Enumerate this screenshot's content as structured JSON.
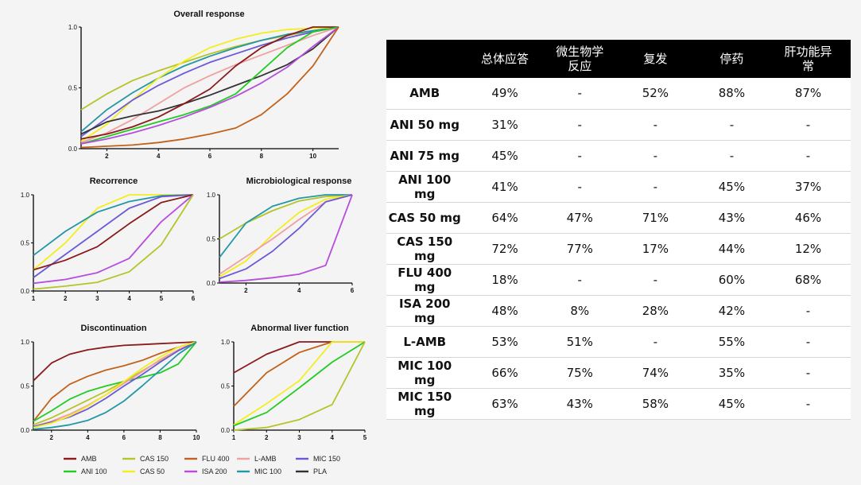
{
  "colors": {
    "AMB": "#8b1a1a",
    "ANI 100": "#22cc22",
    "CAS 150": "#b5c42a",
    "CAS 50": "#f2ee20",
    "FLU 400": "#c2621a",
    "ISA 200": "#b64ddd",
    "L-AMB": "#f0a0a0",
    "MIC 100": "#2497a5",
    "MIC 150": "#6a5ad8",
    "PLA": "#333333"
  },
  "legend": {
    "items": [
      "AMB",
      "CAS 150",
      "FLU 400",
      "L-AMB",
      "MIC 150",
      "ANI 100",
      "CAS 50",
      "ISA 200",
      "MIC 100",
      "PLA"
    ]
  },
  "chart_data": [
    {
      "type": "line",
      "title": "Overall response",
      "xlim": [
        1,
        11
      ],
      "ylim": [
        0,
        1
      ],
      "xticks": [
        2,
        4,
        6,
        8,
        10
      ],
      "yticks": [
        "0.0",
        "0.5",
        "1.0"
      ],
      "series": [
        {
          "name": "CAS 150",
          "x": [
            1,
            2,
            3,
            4,
            5,
            6,
            7,
            8,
            9,
            10,
            11
          ],
          "y": [
            0.32,
            0.45,
            0.56,
            0.64,
            0.71,
            0.78,
            0.84,
            0.89,
            0.93,
            0.97,
            1.0
          ]
        },
        {
          "name": "MIC 100",
          "x": [
            1,
            2,
            3,
            4,
            5,
            6,
            7,
            8,
            9,
            10,
            11
          ],
          "y": [
            0.14,
            0.32,
            0.46,
            0.58,
            0.68,
            0.76,
            0.83,
            0.89,
            0.94,
            0.97,
            1.0
          ]
        },
        {
          "name": "CAS 50",
          "x": [
            1,
            2,
            3,
            4,
            5,
            6,
            7,
            8,
            9,
            10,
            11
          ],
          "y": [
            0.06,
            0.2,
            0.4,
            0.58,
            0.72,
            0.83,
            0.9,
            0.95,
            0.98,
            0.99,
            1.0
          ]
        },
        {
          "name": "MIC 150",
          "x": [
            1,
            2,
            3,
            4,
            5,
            6,
            7,
            8,
            9,
            10,
            11
          ],
          "y": [
            0.1,
            0.25,
            0.4,
            0.52,
            0.62,
            0.71,
            0.78,
            0.85,
            0.91,
            0.96,
            1.0
          ]
        },
        {
          "name": "L-AMB",
          "x": [
            1,
            2,
            3,
            4,
            5,
            6,
            7,
            8,
            9,
            10,
            11
          ],
          "y": [
            0.05,
            0.13,
            0.24,
            0.37,
            0.5,
            0.6,
            0.69,
            0.77,
            0.85,
            0.93,
            1.0
          ]
        },
        {
          "name": "PLA",
          "x": [
            1,
            2,
            3,
            4,
            5,
            6,
            7,
            8,
            9,
            10,
            11
          ],
          "y": [
            0.12,
            0.22,
            0.27,
            0.31,
            0.37,
            0.44,
            0.52,
            0.6,
            0.69,
            0.82,
            1.0
          ]
        },
        {
          "name": "AMB",
          "x": [
            1,
            2,
            3,
            4,
            5,
            6,
            7,
            8,
            9,
            10,
            11
          ],
          "y": [
            0.08,
            0.12,
            0.18,
            0.26,
            0.37,
            0.49,
            0.68,
            0.83,
            0.93,
            1.0,
            1.0
          ]
        },
        {
          "name": "ANI 100",
          "x": [
            1,
            2,
            3,
            4,
            5,
            6,
            7,
            8,
            9,
            10,
            11
          ],
          "y": [
            0.04,
            0.1,
            0.16,
            0.22,
            0.28,
            0.35,
            0.45,
            0.64,
            0.83,
            0.96,
            1.0
          ]
        },
        {
          "name": "ISA 200",
          "x": [
            1,
            2,
            3,
            4,
            5,
            6,
            7,
            8,
            9,
            10,
            11
          ],
          "y": [
            0.04,
            0.08,
            0.13,
            0.19,
            0.26,
            0.34,
            0.43,
            0.54,
            0.67,
            0.84,
            1.0
          ]
        },
        {
          "name": "FLU 400",
          "x": [
            1,
            2,
            3,
            4,
            5,
            6,
            7,
            8,
            9,
            10,
            11
          ],
          "y": [
            0.01,
            0.02,
            0.03,
            0.05,
            0.08,
            0.12,
            0.17,
            0.28,
            0.45,
            0.68,
            1.0
          ]
        }
      ]
    },
    {
      "type": "line",
      "title": "Recorrence",
      "xlim": [
        1,
        6
      ],
      "ylim": [
        0,
        1
      ],
      "xticks": [
        1,
        2,
        3,
        4,
        5,
        6
      ],
      "yticks": [
        "0.0",
        "0.5",
        "1.0"
      ],
      "series": [
        {
          "name": "CAS 50",
          "x": [
            1,
            2,
            3,
            4,
            5,
            6
          ],
          "y": [
            0.22,
            0.5,
            0.86,
            1.0,
            1.0,
            1.0
          ]
        },
        {
          "name": "MIC 100",
          "x": [
            1,
            2,
            3,
            4,
            5,
            6
          ],
          "y": [
            0.37,
            0.62,
            0.82,
            0.93,
            0.99,
            1.0
          ]
        },
        {
          "name": "MIC 150",
          "x": [
            1,
            2,
            3,
            4,
            5,
            6
          ],
          "y": [
            0.14,
            0.38,
            0.62,
            0.86,
            0.98,
            1.0
          ]
        },
        {
          "name": "AMB",
          "x": [
            1,
            2,
            3,
            4,
            5,
            6
          ],
          "y": [
            0.22,
            0.32,
            0.46,
            0.7,
            0.92,
            1.0
          ]
        },
        {
          "name": "ISA 200",
          "x": [
            1,
            2,
            3,
            4,
            5,
            6
          ],
          "y": [
            0.08,
            0.12,
            0.19,
            0.34,
            0.72,
            1.0
          ]
        },
        {
          "name": "CAS 150",
          "x": [
            1,
            2,
            3,
            4,
            5,
            6
          ],
          "y": [
            0.02,
            0.05,
            0.09,
            0.2,
            0.48,
            1.0
          ]
        }
      ]
    },
    {
      "type": "line",
      "title": "Microbiological response",
      "xlim": [
        1,
        6
      ],
      "ylim": [
        0,
        1
      ],
      "xticks": [
        2,
        4,
        6
      ],
      "yticks": [
        "0.0",
        "0.5",
        "1.0"
      ],
      "series": [
        {
          "name": "CAS 150",
          "x": [
            1,
            2,
            3,
            4,
            5,
            6
          ],
          "y": [
            0.5,
            0.68,
            0.82,
            0.93,
            0.98,
            1.0
          ]
        },
        {
          "name": "MIC 100",
          "x": [
            1,
            2,
            3,
            4,
            5,
            6
          ],
          "y": [
            0.29,
            0.68,
            0.87,
            0.96,
            1.0,
            1.0
          ]
        },
        {
          "name": "CAS 50",
          "x": [
            1,
            2,
            3,
            4,
            5,
            6
          ],
          "y": [
            0.07,
            0.25,
            0.55,
            0.8,
            0.95,
            1.0
          ]
        },
        {
          "name": "L-AMB",
          "x": [
            1,
            2,
            3,
            4,
            5,
            6
          ],
          "y": [
            0.1,
            0.3,
            0.5,
            0.72,
            0.92,
            1.0
          ]
        },
        {
          "name": "MIC 150",
          "x": [
            1,
            2,
            3,
            4,
            5,
            6
          ],
          "y": [
            0.05,
            0.16,
            0.36,
            0.62,
            0.92,
            1.0
          ]
        },
        {
          "name": "ISA 200",
          "x": [
            1,
            2,
            3,
            4,
            5,
            6
          ],
          "y": [
            0.01,
            0.03,
            0.06,
            0.1,
            0.2,
            1.0
          ]
        }
      ]
    },
    {
      "type": "line",
      "title": "Discontinuation",
      "xlim": [
        1,
        10
      ],
      "ylim": [
        0,
        1
      ],
      "xticks": [
        2,
        4,
        6,
        8,
        10
      ],
      "yticks": [
        "0.0",
        "0.5",
        "1.0"
      ],
      "series": [
        {
          "name": "AMB",
          "x": [
            1,
            2,
            3,
            4,
            5,
            6,
            7,
            8,
            9,
            10
          ],
          "y": [
            0.56,
            0.76,
            0.86,
            0.91,
            0.94,
            0.96,
            0.97,
            0.98,
            0.99,
            1.0
          ]
        },
        {
          "name": "FLU 400",
          "x": [
            1,
            2,
            3,
            4,
            5,
            6,
            7,
            8,
            9,
            10
          ],
          "y": [
            0.1,
            0.36,
            0.52,
            0.61,
            0.68,
            0.73,
            0.79,
            0.87,
            0.94,
            1.0
          ]
        },
        {
          "name": "ANI 100",
          "x": [
            1,
            2,
            3,
            4,
            5,
            6,
            7,
            8,
            9,
            10
          ],
          "y": [
            0.1,
            0.22,
            0.35,
            0.44,
            0.5,
            0.55,
            0.6,
            0.65,
            0.75,
            1.0
          ]
        },
        {
          "name": "CAS 150",
          "x": [
            1,
            2,
            3,
            4,
            5,
            6,
            7,
            8,
            9,
            10
          ],
          "y": [
            0.06,
            0.14,
            0.24,
            0.34,
            0.44,
            0.55,
            0.67,
            0.79,
            0.9,
            1.0
          ]
        },
        {
          "name": "L-AMB",
          "x": [
            1,
            2,
            3,
            4,
            5,
            6,
            7,
            8,
            9,
            10
          ],
          "y": [
            0.04,
            0.1,
            0.18,
            0.28,
            0.4,
            0.53,
            0.66,
            0.8,
            0.91,
            1.0
          ]
        },
        {
          "name": "MIC 150",
          "x": [
            1,
            2,
            3,
            4,
            5,
            6,
            7,
            8,
            9,
            10
          ],
          "y": [
            0.04,
            0.09,
            0.15,
            0.24,
            0.36,
            0.5,
            0.63,
            0.77,
            0.9,
            1.0
          ]
        },
        {
          "name": "CAS 50",
          "x": [
            1,
            2,
            3,
            4,
            5,
            6,
            7,
            8,
            9,
            10
          ],
          "y": [
            0.03,
            0.08,
            0.16,
            0.27,
            0.4,
            0.55,
            0.7,
            0.83,
            0.94,
            1.0
          ]
        },
        {
          "name": "MIC 100",
          "x": [
            1,
            2,
            3,
            4,
            5,
            6,
            7,
            8,
            9,
            10
          ],
          "y": [
            0.01,
            0.03,
            0.06,
            0.11,
            0.2,
            0.33,
            0.5,
            0.68,
            0.86,
            1.0
          ]
        }
      ]
    },
    {
      "type": "line",
      "title": "Abnormal liver function",
      "xlim": [
        1,
        5
      ],
      "ylim": [
        0,
        1
      ],
      "xticks": [
        1,
        2,
        3,
        4,
        5
      ],
      "yticks": [
        "0.0",
        "0.5",
        "1.0"
      ],
      "series": [
        {
          "name": "AMB",
          "x": [
            1,
            2,
            3,
            4,
            5
          ],
          "y": [
            0.65,
            0.86,
            1.0,
            1.0,
            1.0
          ]
        },
        {
          "name": "FLU 400",
          "x": [
            1,
            2,
            3,
            4,
            5
          ],
          "y": [
            0.27,
            0.65,
            0.88,
            1.0,
            1.0
          ]
        },
        {
          "name": "CAS 50",
          "x": [
            1,
            2,
            3,
            4,
            5
          ],
          "y": [
            0.06,
            0.3,
            0.56,
            1.0,
            1.0
          ]
        },
        {
          "name": "ANI 100",
          "x": [
            1,
            2,
            3,
            4,
            5
          ],
          "y": [
            0.05,
            0.2,
            0.48,
            0.77,
            1.0
          ]
        },
        {
          "name": "CAS 150",
          "x": [
            1,
            2,
            3,
            4,
            5
          ],
          "y": [
            0.0,
            0.03,
            0.12,
            0.29,
            1.0
          ]
        }
      ]
    }
  ],
  "table": {
    "headers": [
      "",
      "总体应答",
      "微生物学反应",
      "复发",
      "停药",
      "肝功能异常"
    ],
    "header_lines": [
      [
        ""
      ],
      [
        "总体应答"
      ],
      [
        "微生物学",
        "反应"
      ],
      [
        "复发"
      ],
      [
        "停药"
      ],
      [
        "肝功能异",
        "常"
      ]
    ],
    "rows": [
      [
        "AMB",
        "49%",
        "-",
        "52%",
        "88%",
        "87%"
      ],
      [
        "ANI 50 mg",
        "31%",
        "-",
        "-",
        "-",
        "-"
      ],
      [
        "ANI 75 mg",
        "45%",
        "-",
        "-",
        "-",
        "-"
      ],
      [
        "ANI 100 mg",
        "41%",
        "-",
        "-",
        "45%",
        "37%"
      ],
      [
        "CAS 50 mg",
        "64%",
        "47%",
        "71%",
        "43%",
        "46%"
      ],
      [
        "CAS 150 mg",
        "72%",
        "77%",
        "17%",
        "44%",
        "12%"
      ],
      [
        "FLU 400 mg",
        "18%",
        "-",
        "-",
        "60%",
        "68%"
      ],
      [
        "ISA 200 mg",
        "48%",
        "8%",
        "28%",
        "42%",
        "-"
      ],
      [
        "L-AMB",
        "53%",
        "51%",
        "-",
        "55%",
        "-"
      ],
      [
        "MIC 100 mg",
        "66%",
        "75%",
        "74%",
        "35%",
        "-"
      ],
      [
        "MIC 150 mg",
        "63%",
        "43%",
        "58%",
        "45%",
        "-"
      ]
    ]
  }
}
